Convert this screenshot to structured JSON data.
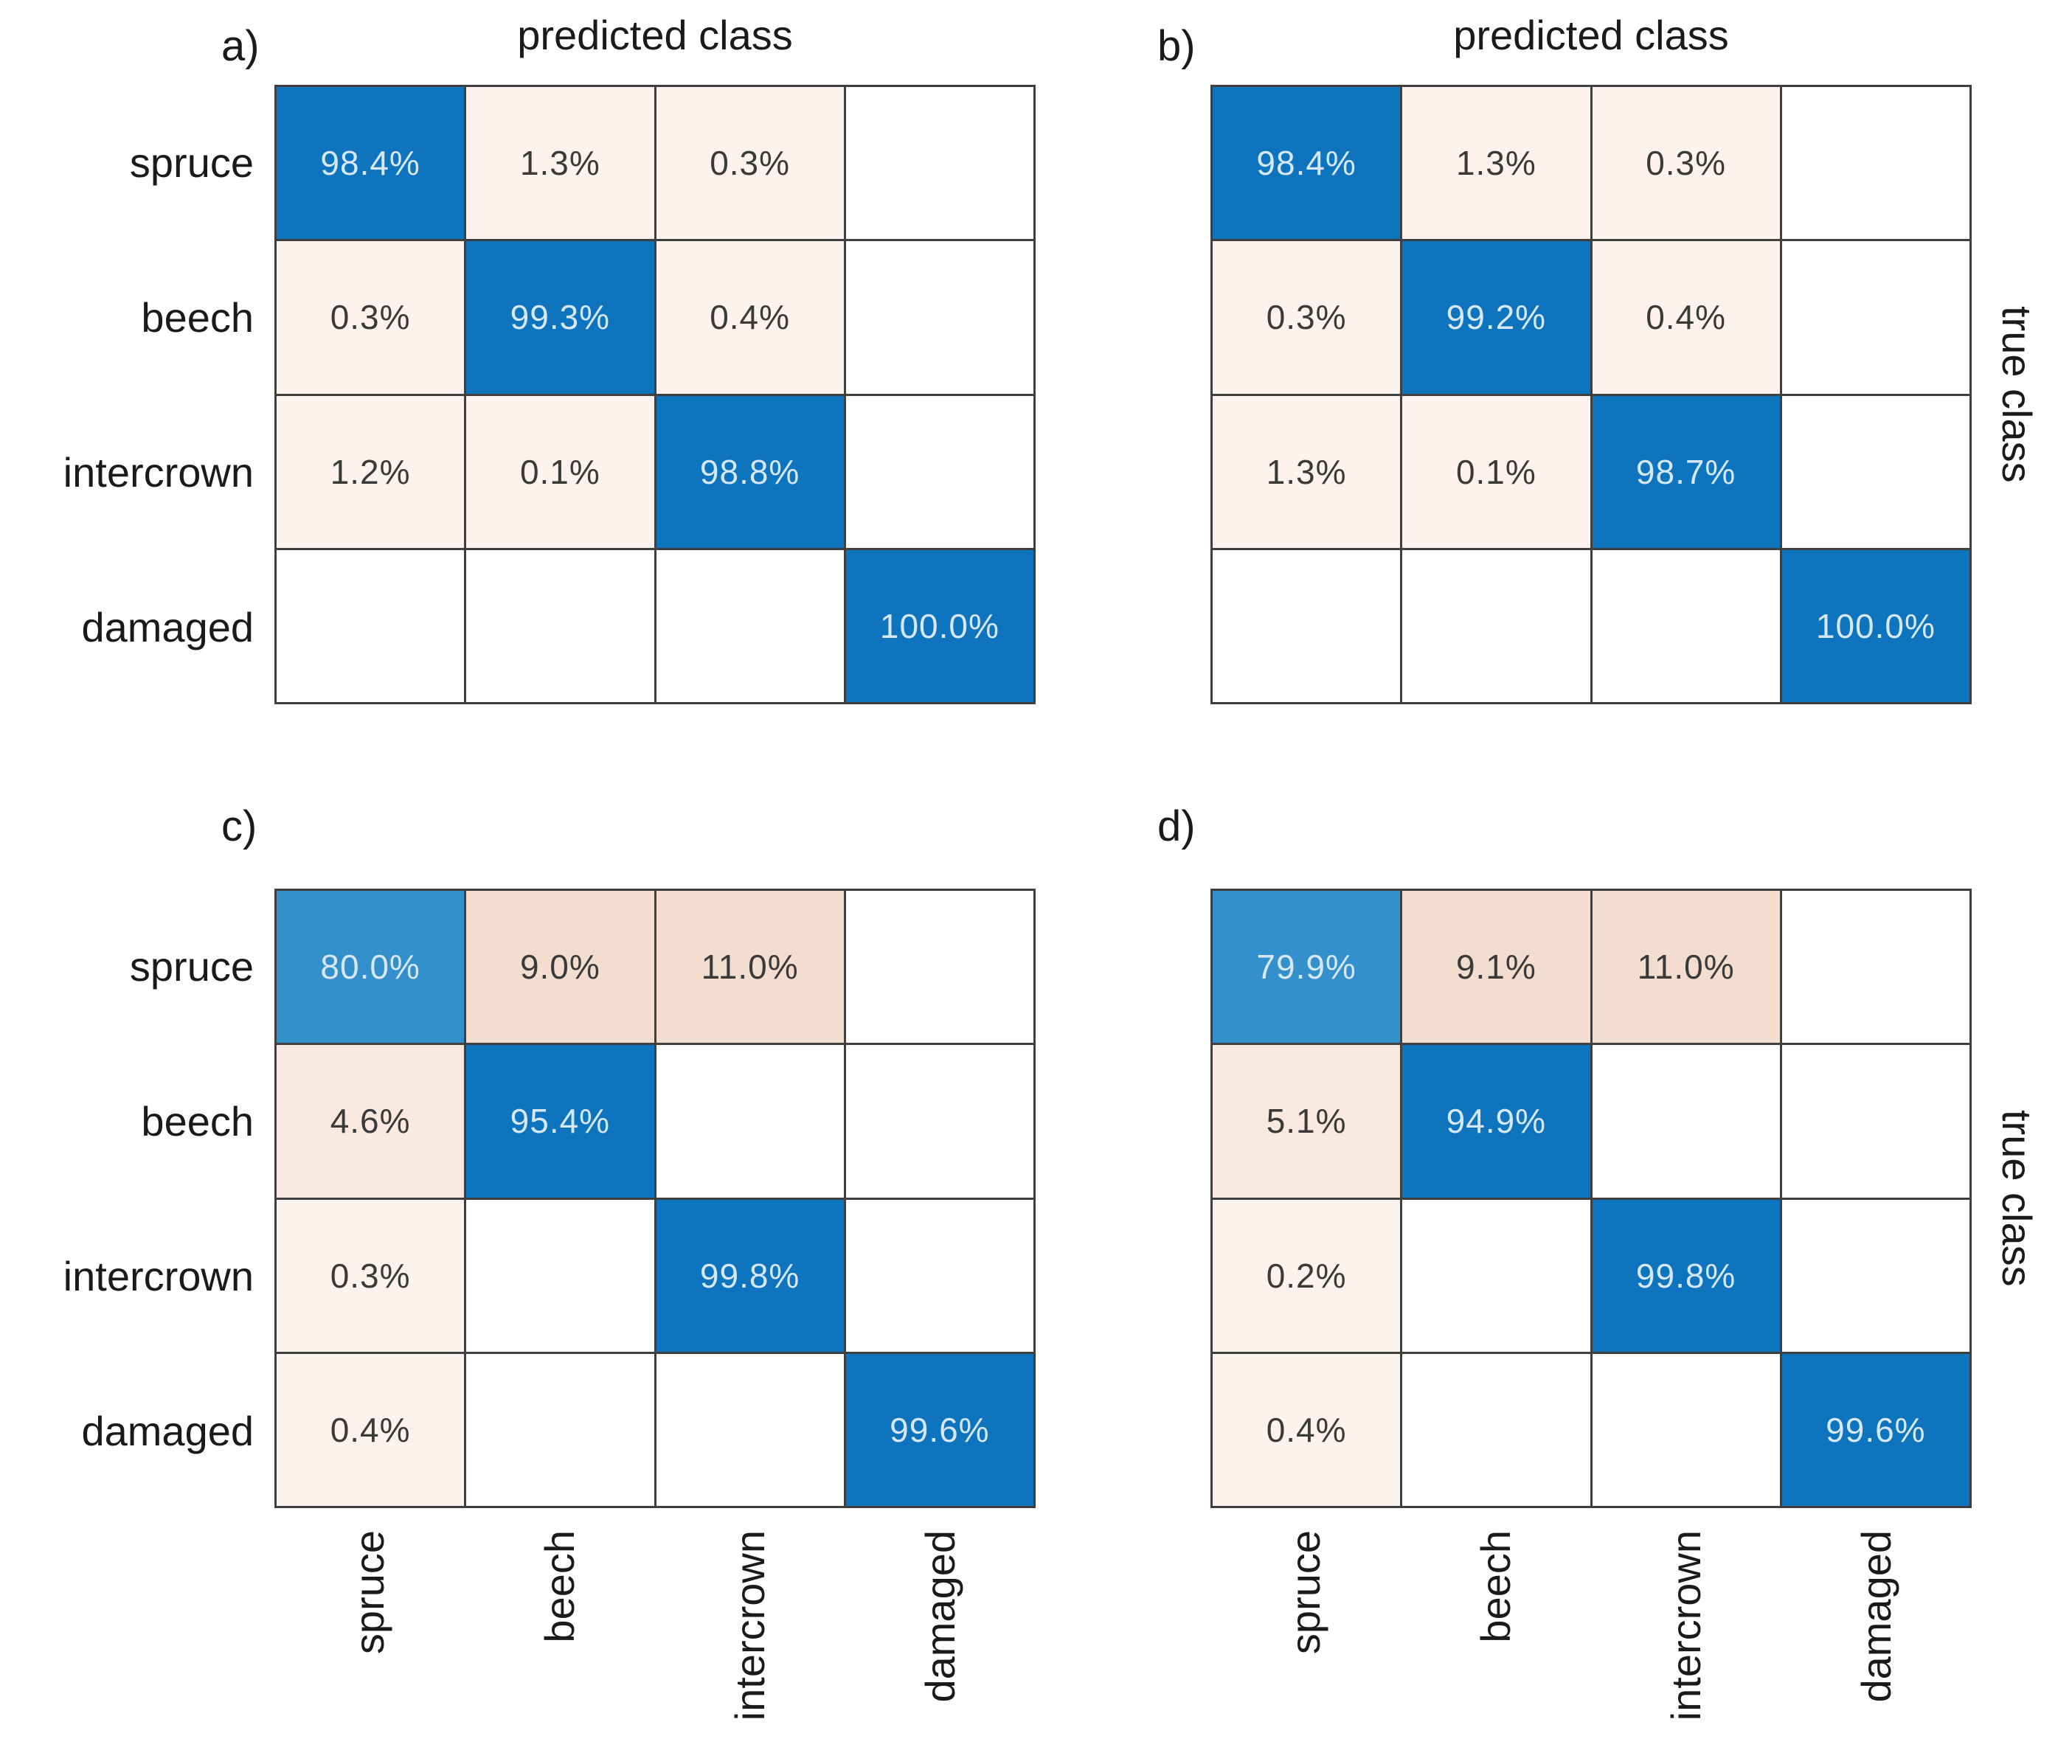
{
  "figure": {
    "panel_letters": {
      "a": "a)",
      "b": "b)",
      "c": "c)",
      "d": "d)"
    },
    "x_axis_title": "predicted class",
    "y_axis_title": "true class",
    "classes": [
      "spruce",
      "beech",
      "intercrown",
      "damaged"
    ]
  },
  "colors": {
    "background": "#ffffff",
    "grid_line": "#3f3f3f",
    "diagonal_strong_blue": "#0d74bd",
    "diagonal_light_blue": "#3390ca",
    "offdiag_pink_low": "#fdf2ed",
    "offdiag_pink_mid": "#fae9e0",
    "offdiag_pink_high": "#f3ddce",
    "empty_cell": "#ffffff",
    "text_on_blue": "#d6e7f5",
    "text_dark": "#3a3a3a",
    "label_text": "#1a1a1a"
  },
  "chart_data": [
    {
      "type": "heatmap",
      "panel": "a",
      "title": "predicted class",
      "x_axis": "predicted class",
      "y_axis": "true class",
      "categories": [
        "spruce",
        "beech",
        "intercrown",
        "damaged"
      ],
      "unit": "%",
      "matrix_percent": [
        [
          98.4,
          1.3,
          0.3,
          null
        ],
        [
          0.3,
          99.3,
          0.4,
          null
        ],
        [
          1.2,
          0.1,
          98.8,
          null
        ],
        [
          null,
          null,
          null,
          100.0
        ]
      ]
    },
    {
      "type": "heatmap",
      "panel": "b",
      "title": "predicted class",
      "x_axis": "predicted class",
      "y_axis": "true class",
      "categories": [
        "spruce",
        "beech",
        "intercrown",
        "damaged"
      ],
      "unit": "%",
      "matrix_percent": [
        [
          98.4,
          1.3,
          0.3,
          null
        ],
        [
          0.3,
          99.2,
          0.4,
          null
        ],
        [
          1.3,
          0.1,
          98.7,
          null
        ],
        [
          null,
          null,
          null,
          100.0
        ]
      ]
    },
    {
      "type": "heatmap",
      "panel": "c",
      "title": "",
      "x_axis": "predicted class",
      "y_axis": "true class",
      "categories": [
        "spruce",
        "beech",
        "intercrown",
        "damaged"
      ],
      "unit": "%",
      "matrix_percent": [
        [
          80.0,
          9.0,
          11.0,
          null
        ],
        [
          4.6,
          95.4,
          null,
          null
        ],
        [
          0.3,
          null,
          99.8,
          null
        ],
        [
          0.4,
          null,
          null,
          99.6
        ]
      ]
    },
    {
      "type": "heatmap",
      "panel": "d",
      "title": "",
      "x_axis": "predicted class",
      "y_axis": "true class",
      "categories": [
        "spruce",
        "beech",
        "intercrown",
        "damaged"
      ],
      "unit": "%",
      "matrix_percent": [
        [
          79.9,
          9.1,
          11.0,
          null
        ],
        [
          5.1,
          94.9,
          null,
          null
        ],
        [
          0.2,
          null,
          99.8,
          null
        ],
        [
          0.4,
          null,
          null,
          99.6
        ]
      ]
    }
  ]
}
